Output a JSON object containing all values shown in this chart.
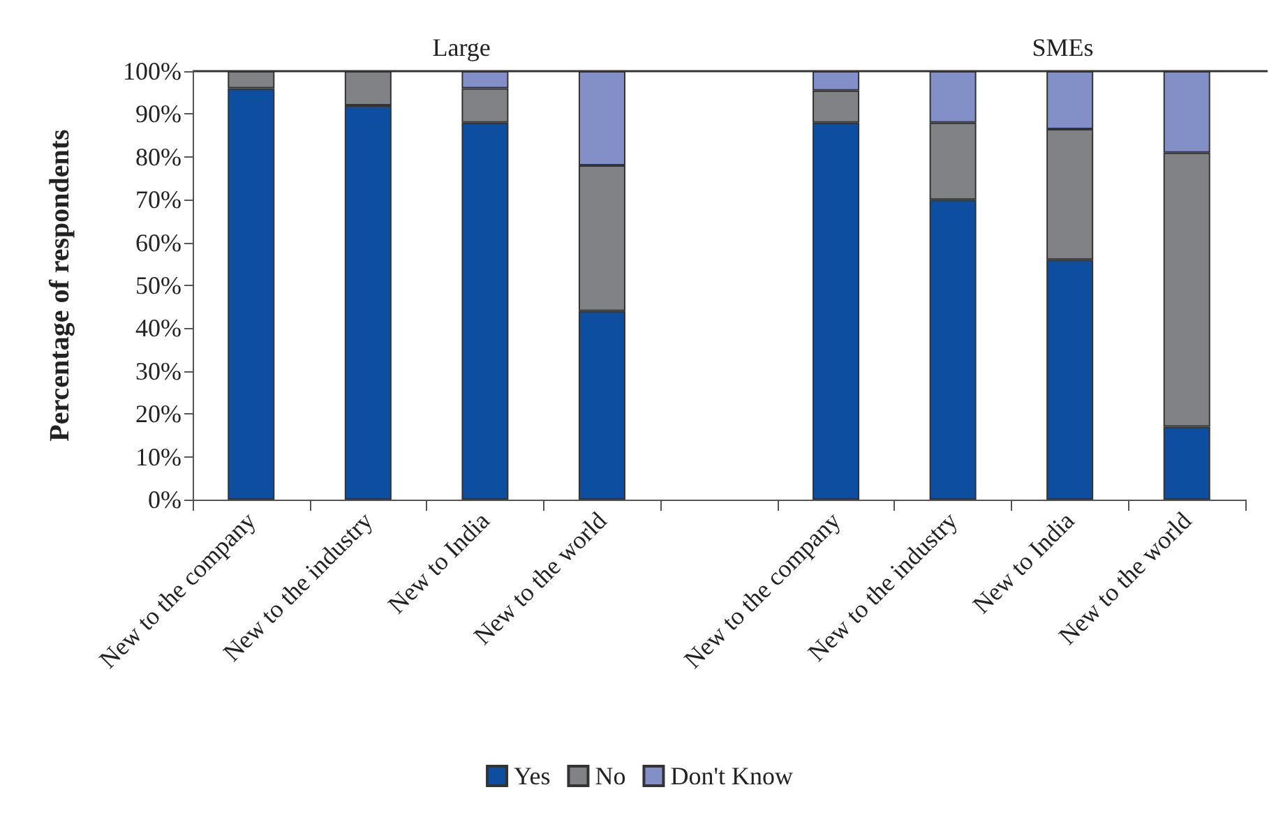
{
  "chart_data": {
    "type": "bar",
    "stacked": true,
    "ylabel": "Percentage of respondents",
    "categories": [
      "New to the company",
      "New to the industry",
      "New to India",
      "New to the world",
      null,
      "New to the company",
      "New to the industry",
      "New to India",
      "New to the world"
    ],
    "series": [
      {
        "name": "Yes",
        "color": "#0d4ea0",
        "values": [
          96,
          92,
          88,
          44,
          null,
          88,
          70,
          56,
          17
        ]
      },
      {
        "name": "No",
        "color": "#808285",
        "values": [
          4,
          8,
          8,
          34,
          null,
          7.5,
          18,
          30.5,
          64
        ]
      },
      {
        "name": "Don't Know",
        "color": "#8390c8",
        "values": [
          0,
          0,
          4,
          22,
          null,
          4.5,
          12,
          13.5,
          19
        ]
      }
    ],
    "annotations": [
      "Large",
      "SMEs"
    ],
    "ylim": [
      0,
      100
    ],
    "yticks": [
      {
        "value": 0,
        "label": "0%"
      },
      {
        "value": 10,
        "label": "10%"
      },
      {
        "value": 20,
        "label": "20%"
      },
      {
        "value": 30,
        "label": "30%"
      },
      {
        "value": 40,
        "label": "40%"
      },
      {
        "value": 50,
        "label": "50%"
      },
      {
        "value": 60,
        "label": "60%"
      },
      {
        "value": 70,
        "label": "70%"
      },
      {
        "value": 80,
        "label": "80%"
      },
      {
        "value": 90,
        "label": "90%"
      },
      {
        "value": 100,
        "label": "100%"
      }
    ],
    "grid": false,
    "legend": "bottom"
  }
}
